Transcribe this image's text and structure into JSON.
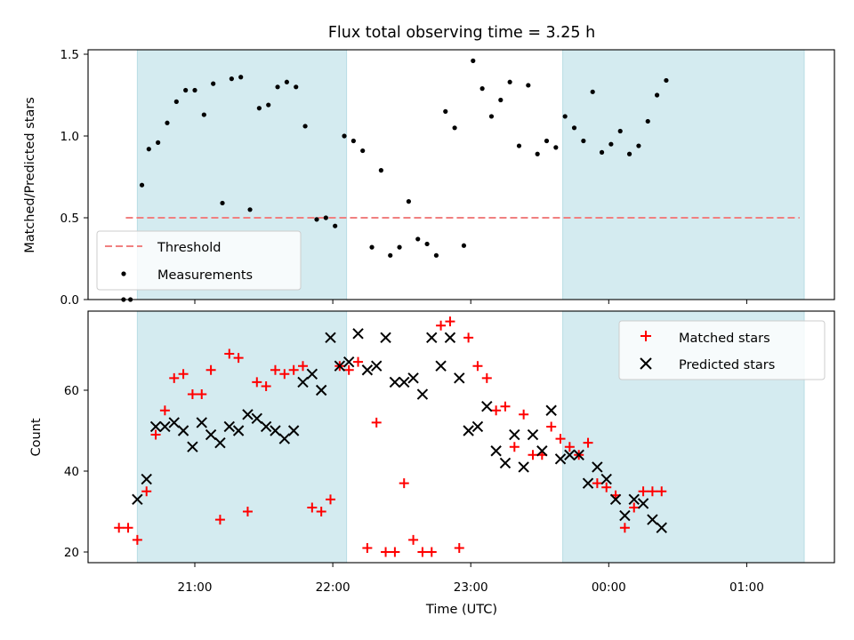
{
  "chart_data": {
    "title": "Flux total observing time = 3.25 h",
    "xlabel": "Time (UTC)",
    "x_ticks": [
      "21:00",
      "22:00",
      "23:00",
      "00:00",
      "01:00"
    ],
    "shaded_spans": [
      [
        "20:35",
        "22:06"
      ],
      [
        "23:40",
        "01:25"
      ]
    ],
    "shade_color": "#d4ebf0",
    "panels": [
      {
        "type": "scatter",
        "ylabel": "Matched/Predicted stars",
        "ylim": [
          0,
          1.55
        ],
        "y_ticks": [
          "0.0",
          "0.5",
          "1.0",
          "1.5"
        ],
        "legend_position": "lower-left",
        "threshold": {
          "name": "Threshold",
          "y": 0.5,
          "x_start": "20:30",
          "x_end": "01:23",
          "color": "#f08080"
        },
        "series": [
          {
            "name": "Measurements",
            "marker": "dot",
            "color": "#000000",
            "points": [
              [
                "20:29",
                0.0
              ],
              [
                "20:32",
                0.0
              ],
              [
                "20:37",
                0.7
              ],
              [
                "20:40",
                0.92
              ],
              [
                "20:44",
                0.96
              ],
              [
                "20:48",
                1.08
              ],
              [
                "20:52",
                1.21
              ],
              [
                "20:56",
                1.28
              ],
              [
                "21:00",
                1.28
              ],
              [
                "21:04",
                1.13
              ],
              [
                "21:08",
                1.32
              ],
              [
                "21:12",
                0.59
              ],
              [
                "21:16",
                1.35
              ],
              [
                "21:20",
                1.36
              ],
              [
                "21:24",
                0.55
              ],
              [
                "21:28",
                1.17
              ],
              [
                "21:32",
                1.19
              ],
              [
                "21:36",
                1.3
              ],
              [
                "21:40",
                1.33
              ],
              [
                "21:44",
                1.3
              ],
              [
                "21:48",
                1.06
              ],
              [
                "21:53",
                0.49
              ],
              [
                "21:57",
                0.5
              ],
              [
                "22:01",
                0.45
              ],
              [
                "22:05",
                1.0
              ],
              [
                "22:09",
                0.97
              ],
              [
                "22:13",
                0.91
              ],
              [
                "22:17",
                0.32
              ],
              [
                "22:21",
                0.79
              ],
              [
                "22:25",
                0.27
              ],
              [
                "22:29",
                0.32
              ],
              [
                "22:33",
                0.6
              ],
              [
                "22:37",
                0.37
              ],
              [
                "22:41",
                0.34
              ],
              [
                "22:45",
                0.27
              ],
              [
                "22:49",
                1.15
              ],
              [
                "22:53",
                1.05
              ],
              [
                "22:57",
                0.33
              ],
              [
                "23:01",
                1.46
              ],
              [
                "23:05",
                1.29
              ],
              [
                "23:09",
                1.12
              ],
              [
                "23:13",
                1.22
              ],
              [
                "23:17",
                1.33
              ],
              [
                "23:21",
                0.94
              ],
              [
                "23:25",
                1.31
              ],
              [
                "23:29",
                0.89
              ],
              [
                "23:33",
                0.97
              ],
              [
                "23:37",
                0.93
              ],
              [
                "23:41",
                1.12
              ],
              [
                "23:45",
                1.05
              ],
              [
                "23:49",
                0.97
              ],
              [
                "23:53",
                1.27
              ],
              [
                "23:57",
                0.9
              ],
              [
                "00:01",
                0.95
              ],
              [
                "00:05",
                1.03
              ],
              [
                "00:09",
                0.89
              ],
              [
                "00:13",
                0.94
              ],
              [
                "00:17",
                1.09
              ],
              [
                "00:21",
                1.25
              ],
              [
                "00:25",
                1.34
              ]
            ]
          }
        ]
      },
      {
        "type": "scatter",
        "ylabel": "Count",
        "ylim": [
          17,
          79
        ],
        "y_ticks": [
          "20",
          "40",
          "60"
        ],
        "legend_position": "upper-right",
        "series": [
          {
            "name": "Matched stars",
            "marker": "plus",
            "color": "#ff0000",
            "points": [
              [
                "20:27",
                26
              ],
              [
                "20:31",
                26
              ],
              [
                "20:35",
                23
              ],
              [
                "20:39",
                35
              ],
              [
                "20:43",
                49
              ],
              [
                "20:47",
                55
              ],
              [
                "20:51",
                63
              ],
              [
                "20:55",
                64
              ],
              [
                "20:59",
                59
              ],
              [
                "21:03",
                59
              ],
              [
                "21:07",
                65
              ],
              [
                "21:11",
                28
              ],
              [
                "21:15",
                69
              ],
              [
                "21:19",
                68
              ],
              [
                "21:23",
                30
              ],
              [
                "21:27",
                62
              ],
              [
                "21:31",
                61
              ],
              [
                "21:35",
                65
              ],
              [
                "21:39",
                64
              ],
              [
                "21:43",
                65
              ],
              [
                "21:47",
                66
              ],
              [
                "21:51",
                31
              ],
              [
                "21:55",
                30
              ],
              [
                "21:59",
                33
              ],
              [
                "22:03",
                66
              ],
              [
                "22:07",
                65
              ],
              [
                "22:11",
                67
              ],
              [
                "22:15",
                21
              ],
              [
                "22:19",
                52
              ],
              [
                "22:23",
                20
              ],
              [
                "22:27",
                20
              ],
              [
                "22:31",
                37
              ],
              [
                "22:35",
                23
              ],
              [
                "22:39",
                20
              ],
              [
                "22:43",
                20
              ],
              [
                "22:47",
                76
              ],
              [
                "22:51",
                77
              ],
              [
                "22:55",
                21
              ],
              [
                "22:59",
                73
              ],
              [
                "23:03",
                66
              ],
              [
                "23:07",
                63
              ],
              [
                "23:11",
                55
              ],
              [
                "23:15",
                56
              ],
              [
                "23:19",
                46
              ],
              [
                "23:23",
                54
              ],
              [
                "23:27",
                44
              ],
              [
                "23:31",
                44
              ],
              [
                "23:35",
                51
              ],
              [
                "23:39",
                48
              ],
              [
                "23:43",
                46
              ],
              [
                "23:47",
                44
              ],
              [
                "23:51",
                47
              ],
              [
                "23:55",
                37
              ],
              [
                "23:59",
                36
              ],
              [
                "00:03",
                34
              ],
              [
                "00:07",
                26
              ],
              [
                "00:11",
                31
              ],
              [
                "00:15",
                35
              ],
              [
                "00:19",
                35
              ],
              [
                "00:23",
                35
              ]
            ]
          },
          {
            "name": "Predicted stars",
            "marker": "x",
            "color": "#000000",
            "points": [
              [
                "20:35",
                33
              ],
              [
                "20:39",
                38
              ],
              [
                "20:43",
                51
              ],
              [
                "20:47",
                51
              ],
              [
                "20:51",
                52
              ],
              [
                "20:55",
                50
              ],
              [
                "20:59",
                46
              ],
              [
                "21:03",
                52
              ],
              [
                "21:07",
                49
              ],
              [
                "21:11",
                47
              ],
              [
                "21:15",
                51
              ],
              [
                "21:19",
                50
              ],
              [
                "21:23",
                54
              ],
              [
                "21:27",
                53
              ],
              [
                "21:31",
                51
              ],
              [
                "21:35",
                50
              ],
              [
                "21:39",
                48
              ],
              [
                "21:43",
                50
              ],
              [
                "21:47",
                62
              ],
              [
                "21:51",
                64
              ],
              [
                "21:55",
                60
              ],
              [
                "21:59",
                73
              ],
              [
                "22:03",
                66
              ],
              [
                "22:07",
                67
              ],
              [
                "22:11",
                74
              ],
              [
                "22:15",
                65
              ],
              [
                "22:19",
                66
              ],
              [
                "22:23",
                73
              ],
              [
                "22:27",
                62
              ],
              [
                "22:31",
                62
              ],
              [
                "22:35",
                63
              ],
              [
                "22:39",
                59
              ],
              [
                "22:43",
                73
              ],
              [
                "22:47",
                66
              ],
              [
                "22:51",
                73
              ],
              [
                "22:55",
                63
              ],
              [
                "22:59",
                50
              ],
              [
                "23:03",
                51
              ],
              [
                "23:07",
                56
              ],
              [
                "23:11",
                45
              ],
              [
                "23:15",
                42
              ],
              [
                "23:19",
                49
              ],
              [
                "23:23",
                41
              ],
              [
                "23:27",
                49
              ],
              [
                "23:31",
                45
              ],
              [
                "23:35",
                55
              ],
              [
                "23:39",
                43
              ],
              [
                "23:43",
                44
              ],
              [
                "23:47",
                44
              ],
              [
                "23:51",
                37
              ],
              [
                "23:55",
                41
              ],
              [
                "23:59",
                38
              ],
              [
                "00:03",
                33
              ],
              [
                "00:07",
                29
              ],
              [
                "00:11",
                33
              ],
              [
                "00:15",
                32
              ],
              [
                "00:19",
                28
              ],
              [
                "00:23",
                26
              ]
            ]
          }
        ]
      }
    ]
  }
}
